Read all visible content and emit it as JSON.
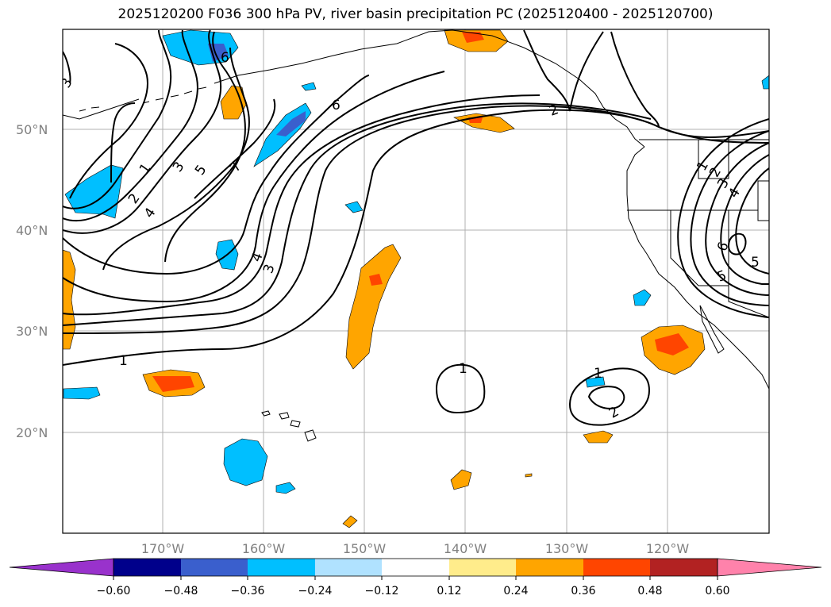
{
  "title": "2025120200 F036 300 hPa PV, river basin precipitation PC (2025120400 - 2025120700)",
  "map": {
    "lat_labels": [
      "50°N",
      "40°N",
      "30°N",
      "20°N"
    ],
    "lon_labels": [
      "170°W",
      "160°W",
      "150°W",
      "140°W",
      "130°W",
      "120°W"
    ],
    "contour_labels": [
      "3",
      "6",
      "1",
      "2",
      "3",
      "4",
      "5",
      "7",
      "6",
      "4",
      "3",
      "1",
      "2",
      "1",
      "1",
      "2",
      "1",
      "2",
      "3",
      "4",
      "5",
      "6",
      "5"
    ]
  },
  "colorbar": {
    "ticks": [
      "−0.60",
      "−0.48",
      "−0.36",
      "−0.24",
      "−0.12",
      "0.12",
      "0.24",
      "0.36",
      "0.48",
      "0.60"
    ],
    "colors": [
      "#9932cc",
      "#00008b",
      "#3a5fcd",
      "#00bfff",
      "#b0e2ff",
      "#ffffff",
      "#ffec8b",
      "#ffa500",
      "#ff4500",
      "#b22222",
      "#ff82ab"
    ]
  }
}
